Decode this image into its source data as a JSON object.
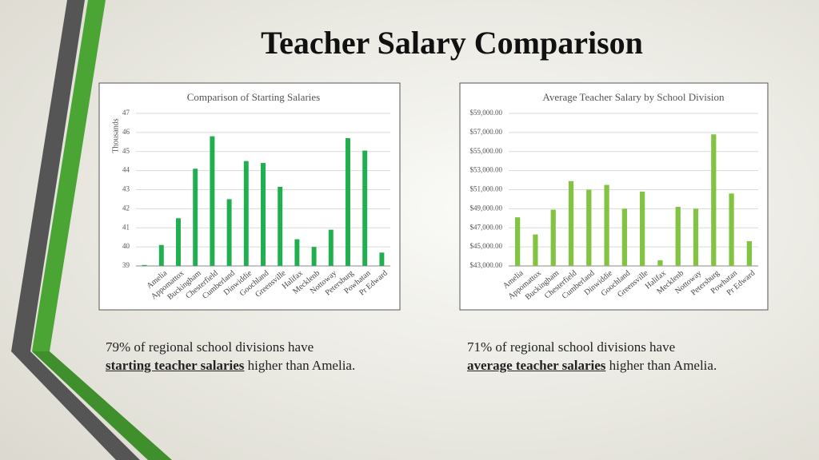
{
  "title": "Teacher Salary Comparison",
  "captions": [
    {
      "line1": "79% of regional school divisions have",
      "emphasis": "starting teacher salaries",
      "rest": " higher than Amelia."
    },
    {
      "line1": "71% of regional school divisions have",
      "emphasis": "average teacher salaries",
      "rest": " higher than Amelia."
    }
  ],
  "chart_data": [
    {
      "type": "bar",
      "title": "Comparison of Starting Salaries",
      "y_label": "Thousands",
      "categories": [
        null,
        "Amelia",
        "Appomattox",
        "Buckingham",
        "Chesterfield",
        "Cumberland",
        "Dinwiddie",
        "Goochland",
        "Greensville",
        "Halifax",
        "Mecklenb",
        "Nottoway",
        "Petersburg",
        "Powhatan",
        "Pr Edward"
      ],
      "values": [
        39.05,
        40.1,
        41.5,
        44.1,
        45.8,
        42.5,
        44.5,
        44.4,
        43.15,
        40.4,
        40.0,
        40.9,
        45.7,
        45.05,
        39.7
      ],
      "color": "#1faf4e",
      "ylim": [
        39,
        47
      ],
      "yticks": [
        39,
        40,
        41,
        42,
        43,
        44,
        45,
        46,
        47
      ],
      "grid": true
    },
    {
      "type": "bar",
      "title": "Average Teacher Salary by School Division",
      "categories": [
        "Amelia",
        "Appomattox",
        "Buckingham",
        "Chesterfield",
        "Cumberland",
        "Dinwiddie",
        "Goochland",
        "Greensville",
        "Halifax",
        "Mecklenb",
        "Nottoway",
        "Petersburg",
        "Powhatan",
        "Pr Edward"
      ],
      "values": [
        48100,
        46300,
        48900,
        51900,
        51000,
        51500,
        49000,
        50800,
        43600,
        49200,
        49000,
        56800,
        50600,
        45600
      ],
      "color": "#82c341",
      "ylim": [
        43000,
        59000
      ],
      "yticks": [
        {
          "value": 43000,
          "label": "$43,000.00"
        },
        {
          "value": 45000,
          "label": "$45,000.00"
        },
        {
          "value": 47000,
          "label": "$47,000.00"
        },
        {
          "value": 49000,
          "label": "$49,000.00"
        },
        {
          "value": 51000,
          "label": "$51,000.00"
        },
        {
          "value": 53000,
          "label": "$53,000.00"
        },
        {
          "value": 55000,
          "label": "$55,000.00"
        },
        {
          "value": 57000,
          "label": "$57,000.00"
        },
        {
          "value": 59000,
          "label": "$59,000.00"
        }
      ],
      "grid": true
    }
  ]
}
